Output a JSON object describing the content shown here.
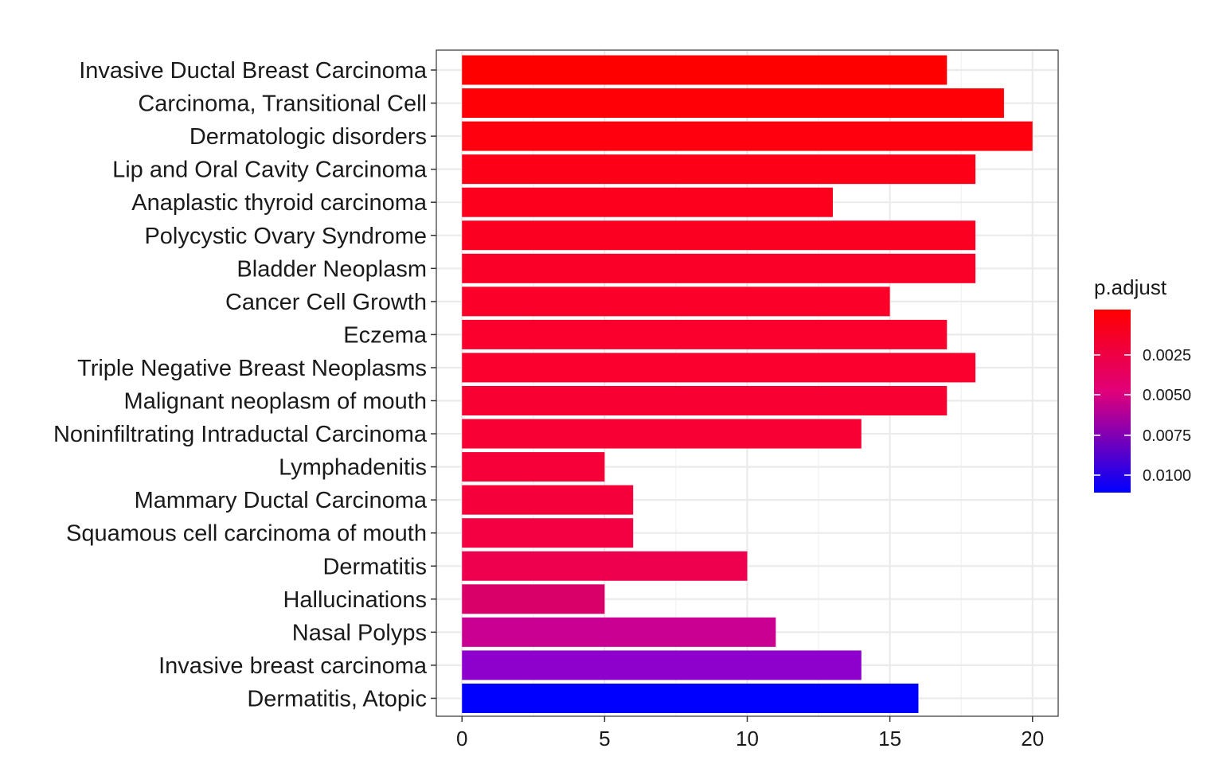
{
  "chart_data": {
    "type": "bar",
    "orientation": "horizontal",
    "categories": [
      "Invasive Ductal Breast Carcinoma",
      "Carcinoma, Transitional Cell",
      "Dermatologic disorders",
      "Lip and Oral Cavity Carcinoma",
      "Anaplastic thyroid carcinoma",
      "Polycystic Ovary Syndrome",
      "Bladder Neoplasm",
      "Cancer Cell Growth",
      "Eczema",
      "Triple Negative Breast Neoplasms",
      "Malignant neoplasm of mouth",
      "Noninfiltrating Intraductal Carcinoma",
      "Lymphadenitis",
      "Mammary Ductal Carcinoma",
      "Squamous cell carcinoma of mouth",
      "Dermatitis",
      "Hallucinations",
      "Nasal Polyps",
      "Invasive breast carcinoma",
      "Dermatitis, Atopic"
    ],
    "values": [
      17,
      19,
      20,
      18,
      13,
      18,
      18,
      15,
      17,
      18,
      17,
      14,
      5,
      6,
      6,
      10,
      5,
      11,
      14,
      16
    ],
    "bar_colors": [
      "#FF0000",
      "#FF0006",
      "#FE000E",
      "#FD0018",
      "#FC001E",
      "#FC0022",
      "#FB0026",
      "#FB0029",
      "#FA002C",
      "#FA002E",
      "#F90032",
      "#F90034",
      "#F70038",
      "#F6003C",
      "#F40042",
      "#EF004E",
      "#D90069",
      "#CA0093",
      "#8E00CC",
      "#0000FF"
    ],
    "xlim": [
      -0.9,
      20.9
    ],
    "xticks": [
      "0",
      "5",
      "10",
      "15",
      "20"
    ],
    "xtick_values": [
      0,
      5,
      10,
      15,
      20
    ],
    "grid": true,
    "legend": {
      "title": "p.adjust",
      "placement": "right",
      "labels": [
        "0.0025",
        "0.0050",
        "0.0075",
        "0.0100"
      ],
      "color_high": "#FF0000",
      "color_low": "#0000FF",
      "color_mid": "#E0007A"
    }
  }
}
